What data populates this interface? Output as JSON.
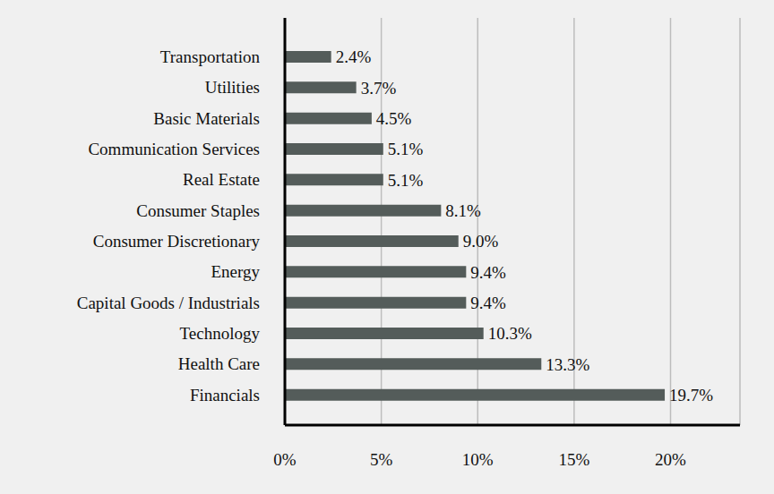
{
  "chart_data": {
    "type": "bar",
    "orientation": "horizontal",
    "categories": [
      "Transportation",
      "Utilities",
      "Basic Materials",
      "Communication Services",
      "Real Estate",
      "Consumer Staples",
      "Consumer Discretionary",
      "Energy",
      "Capital Goods / Industrials",
      "Technology",
      "Health Care",
      "Financials"
    ],
    "values": [
      2.4,
      3.7,
      4.5,
      5.1,
      5.1,
      8.1,
      9.0,
      9.4,
      9.4,
      10.3,
      13.3,
      19.7
    ],
    "value_labels": [
      "2.4%",
      "3.7%",
      "4.5%",
      "5.1%",
      "5.1%",
      "8.1%",
      "9.0%",
      "9.4%",
      "9.4%",
      "10.3%",
      "13.3%",
      "19.7%"
    ],
    "color": "#545c5a",
    "xlim": [
      0,
      23.6
    ],
    "xticks": [
      {
        "value": 0,
        "label": "0%"
      },
      {
        "value": 5,
        "label": "5%"
      },
      {
        "value": 10,
        "label": "10%"
      },
      {
        "value": 15,
        "label": "15%"
      },
      {
        "value": 20,
        "label": "20%"
      }
    ],
    "grid": true,
    "data_labels": true
  }
}
